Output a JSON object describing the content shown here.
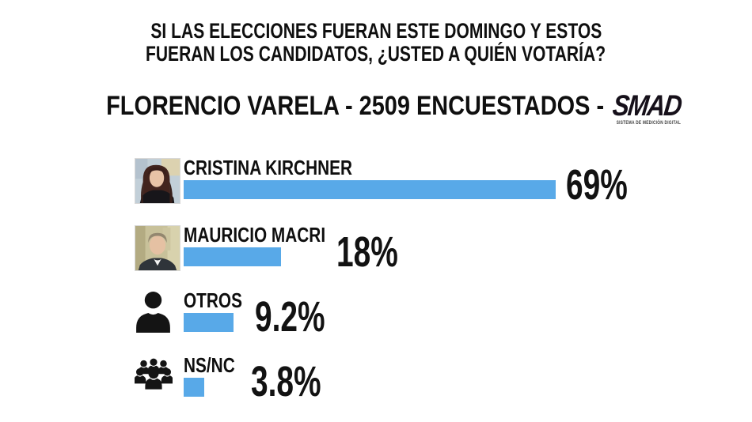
{
  "title": {
    "line1": "SI LAS ELECCIONES FUERAN ESTE DOMINGO Y ESTOS",
    "line2": "FUERAN LOS CANDIDATOS, ¿USTED A QUIÉN VOTARÍA?"
  },
  "subtitle": {
    "text": "FLORENCIO VARELA - 2509 ENCUESTADOS -",
    "logo_text": "SMAD",
    "logo_tagline": "SISTEMA DE MEDICIÓN DIGITAL"
  },
  "colors": {
    "bar": "#58a9e8",
    "text": "#0f0f0f",
    "background": "#ffffff",
    "silhouette": "#141414"
  },
  "icons": [
    "cristina-kirchner-photo",
    "mauricio-macri-photo",
    "person-silhouette-icon",
    "people-group-icon"
  ],
  "chart_data": {
    "type": "bar",
    "orientation": "horizontal",
    "title": "FLORENCIO VARELA - 2509 ENCUESTADOS",
    "categories": [
      "CRISTINA KIRCHNER",
      "MAURICIO MACRI",
      "OTROS",
      "NS/NC"
    ],
    "values": [
      69,
      18,
      9.2,
      3.8
    ],
    "value_labels": [
      "69%",
      "18%",
      "9.2%",
      "3.8%"
    ],
    "xlim": [
      0,
      100
    ],
    "bar_color": "#58a9e8",
    "grid": false,
    "legend": "none"
  }
}
